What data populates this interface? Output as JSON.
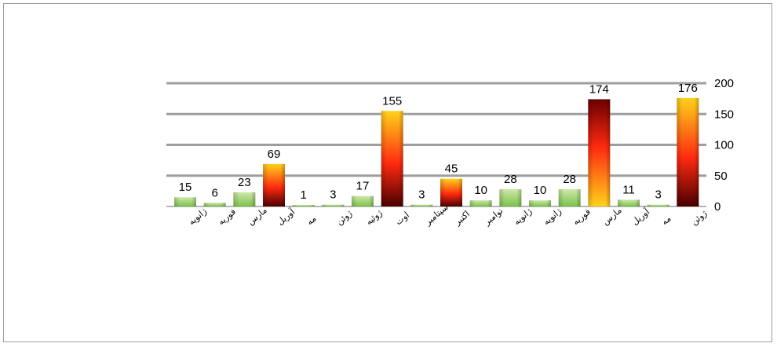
{
  "chart_data": {
    "type": "bar",
    "title": "",
    "xlabel": "",
    "ylabel": "",
    "ylim": [
      0,
      200
    ],
    "yticks": [
      "0",
      "50",
      "100",
      "150",
      "200"
    ],
    "y_axis_side": "right",
    "grid": true,
    "categories": [
      "ژانویه",
      "فوریه",
      "مارس",
      "آوریل",
      "مه",
      "ژوئن",
      "ژوئیه",
      "اوت",
      "سپتامبر",
      "اکتبر",
      "نوامبر",
      "ژانویه",
      "ژانویه",
      "فوریه",
      "مارس",
      "آوریل",
      "مه",
      "ژوئن"
    ],
    "values": [
      15,
      6,
      23,
      69,
      1,
      3,
      17,
      155,
      3,
      45,
      10,
      28,
      10,
      28,
      174,
      11,
      3,
      176
    ],
    "bar_styles": [
      "green",
      "green",
      "green",
      "hot",
      "green",
      "green",
      "green",
      "hot",
      "green",
      "hot",
      "green",
      "green",
      "green",
      "green",
      "hot-rev",
      "green",
      "green",
      "hot"
    ],
    "colors": {
      "green_top": "#cde8a8",
      "green_bottom": "#7bc24a",
      "hot_top": "#ffd21a",
      "hot_mid": "#ff2a10",
      "hot_bottom": "#4a0000",
      "grid": "#9e9e9e"
    }
  }
}
